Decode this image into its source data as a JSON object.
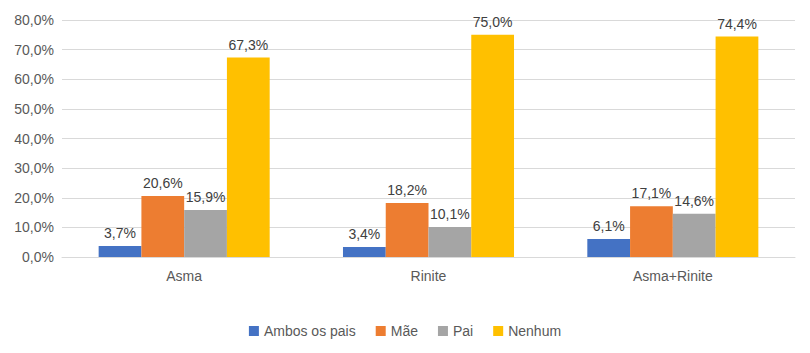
{
  "chart_data": {
    "type": "bar",
    "categories": [
      "Asma",
      "Rinite",
      "Asma+Rinite"
    ],
    "series": [
      {
        "name": "Ambos os pais",
        "color": "#4472c4",
        "values": [
          3.7,
          3.4,
          6.1
        ],
        "value_labels": [
          "3,7%",
          "3,4%",
          "6,1%"
        ]
      },
      {
        "name": "Mãe",
        "color": "#ed7d31",
        "values": [
          20.6,
          18.2,
          17.1
        ],
        "value_labels": [
          "20,6%",
          "18,2%",
          "17,1%"
        ]
      },
      {
        "name": "Pai",
        "color": "#a5a5a5",
        "values": [
          15.9,
          10.1,
          14.6
        ],
        "value_labels": [
          "15,9%",
          "10,1%",
          "14,6%"
        ]
      },
      {
        "name": "Nenhum",
        "color": "#ffc000",
        "values": [
          67.3,
          75.0,
          74.4
        ],
        "value_labels": [
          "67,3%",
          "75,0%",
          "74,4%"
        ]
      }
    ],
    "ylim": [
      0,
      80
    ],
    "yticks": [
      {
        "value": 0,
        "label": "0,0%"
      },
      {
        "value": 10,
        "label": "10,0%"
      },
      {
        "value": 20,
        "label": "20,0%"
      },
      {
        "value": 30,
        "label": "30,0%"
      },
      {
        "value": 40,
        "label": "40,0%"
      },
      {
        "value": 50,
        "label": "50,0%"
      },
      {
        "value": 60,
        "label": "60,0%"
      },
      {
        "value": 70,
        "label": "70,0%"
      },
      {
        "value": 80,
        "label": "80,0%"
      }
    ],
    "grid": true,
    "legend": "bottom",
    "data_labels": true
  }
}
